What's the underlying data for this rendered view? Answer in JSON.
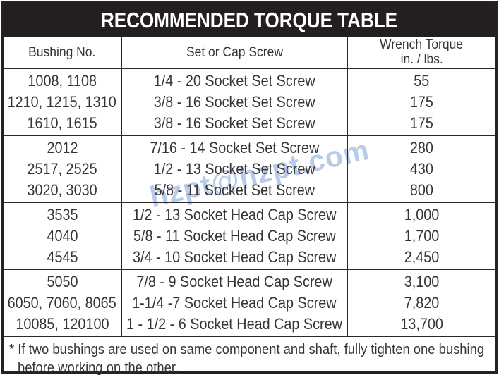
{
  "title": "RECOMMENDED TORQUE TABLE",
  "watermark": "hzpt@hzpt.com",
  "table": {
    "columns": {
      "bushing": "Bushing No.",
      "screw": "Set or Cap Screw",
      "torque_line1": "Wrench Torque",
      "torque_line2": "in. / lbs."
    },
    "groups": [
      {
        "rows": [
          {
            "bushing": "1008, 1108",
            "screw": "1/4 - 20 Socket Set Screw",
            "torque": "55"
          },
          {
            "bushing": "1210, 1215, 1310",
            "screw": "3/8 - 16 Socket Set Screw",
            "torque": "175"
          },
          {
            "bushing": "1610, 1615",
            "screw": "3/8 - 16 Socket Set Screw",
            "torque": "175"
          }
        ]
      },
      {
        "rows": [
          {
            "bushing": "2012",
            "screw": "7/16 - 14 Socket Set Screw",
            "torque": "280"
          },
          {
            "bushing": "2517, 2525",
            "screw": "1/2 - 13 Socket Set Screw",
            "torque": "430"
          },
          {
            "bushing": "3020, 3030",
            "screw": "5/8 - 11 Socket Set Screw",
            "torque": "800"
          }
        ]
      },
      {
        "rows": [
          {
            "bushing": "3535",
            "screw": "1/2 - 13 Socket Head Cap Screw",
            "torque": "1,000"
          },
          {
            "bushing": "4040",
            "screw": "5/8 - 11 Socket Head Cap Screw",
            "torque": "1,700"
          },
          {
            "bushing": "4545",
            "screw": "3/4 - 10 Socket Head Cap Screw",
            "torque": "2,450"
          }
        ]
      },
      {
        "rows": [
          {
            "bushing": "5050",
            "screw": "7/8 - 9 Socket Head Cap Screw",
            "torque": "3,100"
          },
          {
            "bushing": "6050, 7060, 8065",
            "screw": "1-1/4 -7 Socket Head Cap Screw",
            "torque": "7,820"
          },
          {
            "bushing": "10085, 120100",
            "screw": "1 - 1/2 - 6 Socket Head Cap Screw",
            "torque": "13,700"
          }
        ]
      }
    ]
  },
  "footnote": {
    "line1": "* If two bushings are used on same component and shaft, fully tighten one bushing",
    "line2": "before working on the other."
  },
  "colors": {
    "bar_black": "#231f20",
    "text": "#373435",
    "border": "#2c2829",
    "watermark_blue": "#b7cce9"
  }
}
